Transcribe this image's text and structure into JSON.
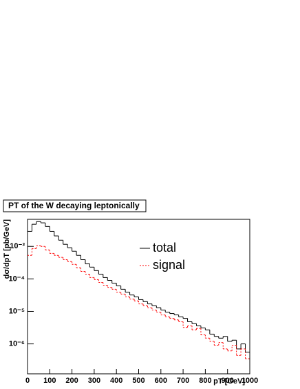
{
  "chart_data": {
    "type": "histogram",
    "title": "PT of the W decaying leptonically",
    "x_label": "pT [GeV]",
    "y_label": "dσ/dpT [pb/GeV]",
    "bins": [
      0,
      20,
      40,
      60,
      80,
      100,
      120,
      140,
      160,
      180,
      200,
      220,
      240,
      260,
      280,
      300,
      320,
      340,
      360,
      380,
      400,
      420,
      440,
      460,
      480,
      500,
      520,
      540,
      560,
      580,
      600,
      620,
      640,
      660,
      680,
      700,
      720,
      740,
      760,
      780,
      800,
      820,
      840,
      860,
      880,
      900,
      920,
      940,
      960,
      980,
      1000
    ],
    "series": [
      {
        "name": "total",
        "color": "#000000",
        "dash": false,
        "values": [
          0.0029,
          0.0048,
          0.0058,
          0.0053,
          0.0041,
          0.0029,
          0.0021,
          0.00155,
          0.00116,
          0.00091,
          0.00071,
          0.00053,
          0.00039,
          0.00029,
          0.00023,
          0.00018,
          0.00014,
          0.00011,
          9e-05,
          7.4e-05,
          6.1e-05,
          4.8e-05,
          3.9e-05,
          3.2e-05,
          2.8e-05,
          2.3e-05,
          2e-05,
          1.7e-05,
          1.5e-05,
          1.3e-05,
          1.1e-05,
          9.5e-06,
          8.6e-06,
          7.8e-06,
          6.8e-06,
          6.1e-06,
          4.8e-06,
          4.2e-06,
          3.6e-06,
          3.1e-06,
          2.7e-06,
          2e-06,
          1.7e-06,
          1.5e-06,
          1.7e-06,
          1.2e-06,
          1.3e-06,
          7e-07,
          1e-06,
          5.6e-07
        ]
      },
      {
        "name": "signal",
        "color": "#ff0000",
        "dash": true,
        "values": [
          0.00053,
          0.00086,
          0.00105,
          0.001,
          0.00078,
          0.00061,
          0.00053,
          0.00046,
          0.00039,
          0.00034,
          0.00028,
          0.00022,
          0.00017,
          0.00014,
          0.00011,
          9.5e-05,
          7.8e-05,
          6.4e-05,
          5.5e-05,
          4.8e-05,
          3.9e-05,
          3.4e-05,
          2.8e-05,
          2.4e-05,
          2.1e-05,
          1.7e-05,
          1.5e-05,
          1.3e-05,
          1.1e-05,
          9.5e-06,
          7.8e-06,
          6.8e-06,
          6.1e-06,
          5.5e-06,
          4.8e-06,
          3.2e-06,
          3.6e-06,
          2.7e-06,
          3e-06,
          1.9e-06,
          1.5e-06,
          1.2e-06,
          9.1e-07,
          1.1e-06,
          7e-07,
          6.1e-07,
          9.1e-07,
          4.4e-07,
          7e-07,
          3.5e-07
        ]
      }
    ],
    "xlim": [
      0,
      1000
    ],
    "xticks": [
      0,
      100,
      200,
      300,
      400,
      500,
      600,
      700,
      800,
      900,
      1000
    ],
    "ylim": [
      1.2e-07,
      0.0068
    ],
    "yticks": [
      {
        "value": 1e-06,
        "label": "10⁻⁶"
      },
      {
        "value": 1e-05,
        "label": "10⁻⁵"
      },
      {
        "value": 0.0001,
        "label": "10⁻⁴"
      },
      {
        "value": 0.001,
        "label": "10⁻³"
      }
    ],
    "log_y": true
  }
}
